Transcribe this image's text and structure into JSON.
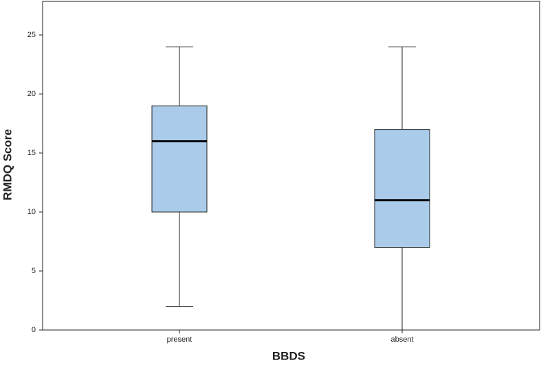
{
  "chart_data": {
    "type": "box",
    "x_label": "BBDS",
    "y_label": "RMDQ Score",
    "categories": [
      "present",
      "absent"
    ],
    "series": [
      {
        "color": "#aacbea",
        "min": [
          2,
          0
        ],
        "q1": [
          10,
          7
        ],
        "median": [
          16,
          11
        ],
        "q3": [
          19,
          17
        ],
        "max": [
          24,
          24
        ]
      }
    ],
    "ylim": [
      0,
      27.85
    ],
    "yticks": [
      0,
      5,
      10,
      15,
      20,
      25
    ],
    "grid": false
  }
}
